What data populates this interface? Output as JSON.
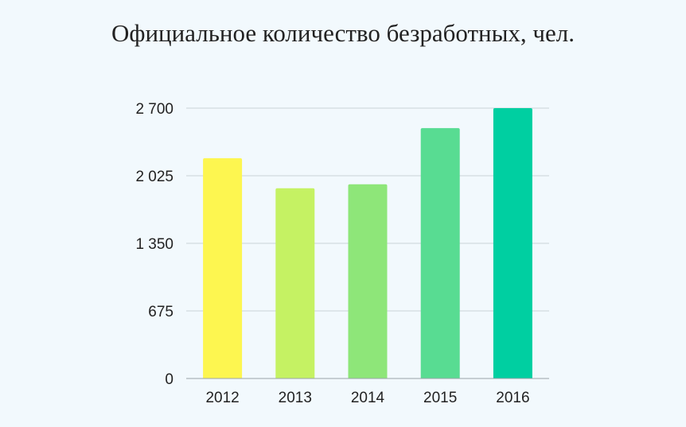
{
  "chart_data": {
    "type": "bar",
    "title": "Официальное количество безработных, чел.",
    "xlabel": "",
    "ylabel": "",
    "categories": [
      "2012",
      "2013",
      "2014",
      "2015",
      "2016"
    ],
    "values": [
      2200,
      1900,
      1940,
      2500,
      2700
    ],
    "ylim": [
      0,
      2700
    ],
    "yticks": [
      0,
      675,
      1350,
      2025,
      2700
    ],
    "ytick_labels": [
      "0",
      "675",
      "1 350",
      "2 025",
      "2 700"
    ],
    "bar_colors": [
      "#fdf650",
      "#c5f263",
      "#8ee679",
      "#58dc92",
      "#00cfa1"
    ],
    "grid": true,
    "legend": "none"
  }
}
